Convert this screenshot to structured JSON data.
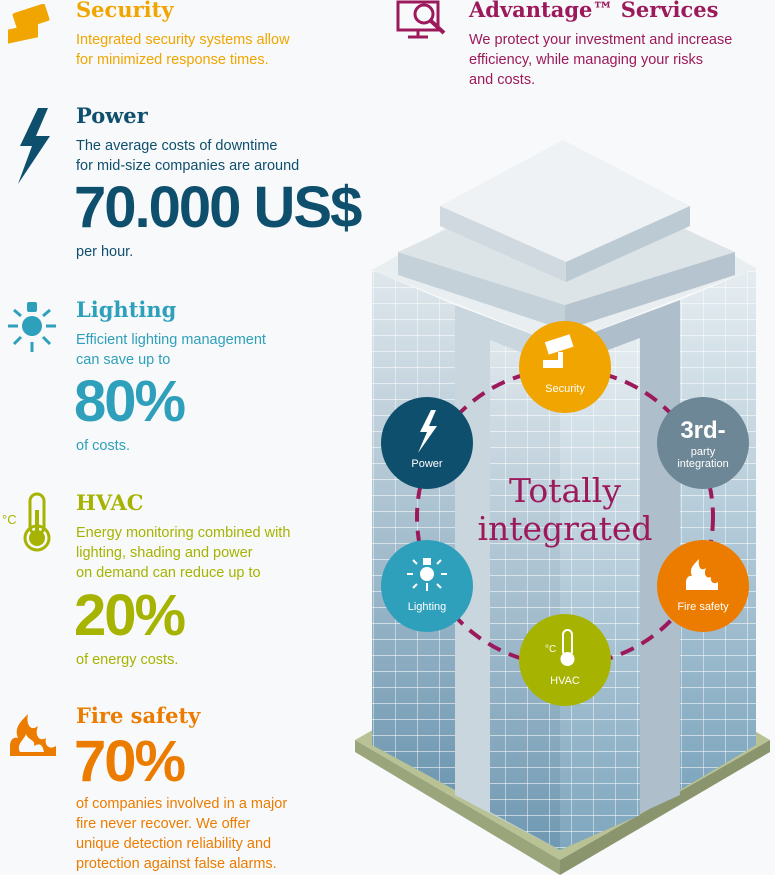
{
  "colors": {
    "security": "#f0a500",
    "power": "#0f4f6e",
    "lighting": "#2fa0bb",
    "hvac": "#a6b300",
    "fire": "#ec7c00",
    "third": "#6d8796",
    "advantage": "#9c1a5b",
    "text_dark": "#1a3a4a"
  },
  "security": {
    "title": "Security",
    "text": [
      "Integrated security systems allow",
      "for minimized response times."
    ],
    "icon": "camera-icon"
  },
  "advantage": {
    "title": "Advantage™ Services",
    "text": [
      "We protect your investment and increase",
      "efficiency, while managing your risks",
      "and costs."
    ],
    "icon": "monitor-magnifier-icon"
  },
  "power": {
    "title": "Power",
    "text": [
      "The average costs of downtime",
      "for mid-size companies are around"
    ],
    "stat": "70.000 US$",
    "after": "per hour.",
    "icon": "lightning-icon"
  },
  "lighting": {
    "title": "Lighting",
    "text": [
      "Efficient lighting management",
      "can save up to"
    ],
    "stat": "80%",
    "after": "of costs.",
    "icon": "bulb-icon"
  },
  "hvac": {
    "title": "HVAC",
    "text": [
      "Energy monitoring combined with",
      "lighting, shading and power",
      "on demand can reduce up to"
    ],
    "stat": "20%",
    "after": "of energy costs.",
    "icon": "thermometer-icon",
    "unit": "°C"
  },
  "fire": {
    "title": "Fire safety",
    "stat": "70%",
    "text": [
      "of companies involved in a major",
      "fire never recover. We offer",
      "unique detection reliability and",
      "protection against false alarms."
    ],
    "icon": "flame-icon"
  },
  "diagram": {
    "center": [
      "Totally",
      "integrated"
    ],
    "circles": {
      "security": "Security",
      "third_big": "3rd-",
      "third_small": [
        "party",
        "integration"
      ],
      "power": "Power",
      "lighting": "Lighting",
      "fire": "Fire safety",
      "hvac": "HVAC",
      "hvac_unit": "°C"
    }
  }
}
